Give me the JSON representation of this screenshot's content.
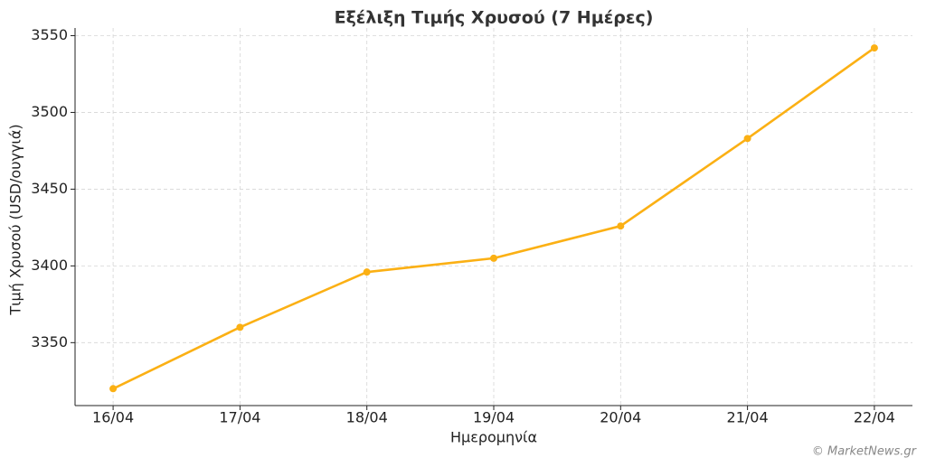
{
  "chart_data": {
    "type": "line",
    "title": "Εξέλιξη Τιμής Χρυσού (7 Ημέρες)",
    "x_label": "Ημερομηνία",
    "y_label": "Τιμή Χρυσού (USD/ουγγιά)",
    "categories": [
      "16/04",
      "17/04",
      "18/04",
      "19/04",
      "20/04",
      "21/04",
      "22/04"
    ],
    "series": [
      {
        "name": "Τιμή Χρυσού",
        "color": "#fbb014",
        "values": [
          3320,
          3360,
          3396,
          3405,
          3426,
          3483,
          3542
        ]
      }
    ],
    "ylim": [
      3309,
      3555
    ],
    "yticks": [
      3350,
      3400,
      3450,
      3500,
      3550
    ],
    "grid": true,
    "watermark": "© MarketNews.gr"
  }
}
